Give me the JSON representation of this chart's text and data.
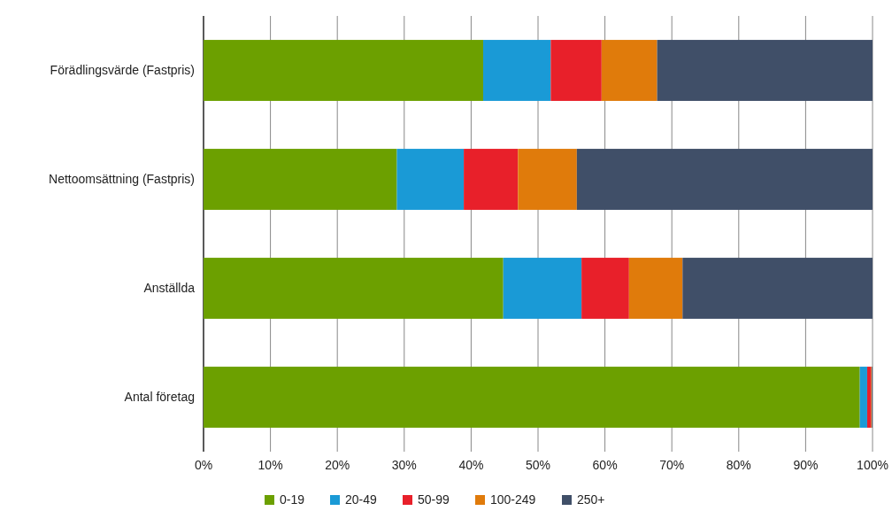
{
  "chart_data": {
    "type": "bar",
    "orientation": "horizontal",
    "stacked": true,
    "categories": [
      "Förädlingsvärde (Fastpris)",
      "Nettoomsättning (Fastpris)",
      "Anställda",
      "Antal företag"
    ],
    "series": [
      {
        "name": "0-19",
        "color": "#6ca000",
        "values": [
          41.8,
          28.9,
          44.8,
          98.1
        ]
      },
      {
        "name": "20-49",
        "color": "#1a9ad6",
        "values": [
          10.1,
          10.0,
          11.7,
          1.1
        ]
      },
      {
        "name": "50-99",
        "color": "#e8202a",
        "values": [
          7.6,
          8.1,
          7.1,
          0.6
        ]
      },
      {
        "name": "100-249",
        "color": "#e07b0b",
        "values": [
          8.3,
          8.8,
          8.0,
          0.1
        ]
      },
      {
        "name": "250+",
        "color": "#404f68",
        "values": [
          32.2,
          44.2,
          28.4,
          0.1
        ]
      }
    ],
    "xlim": [
      0,
      100
    ],
    "xticks": [
      {
        "value": 0,
        "label": "0%"
      },
      {
        "value": 10,
        "label": "10%"
      },
      {
        "value": 20,
        "label": "20%"
      },
      {
        "value": 30,
        "label": "30%"
      },
      {
        "value": 40,
        "label": "40%"
      },
      {
        "value": 50,
        "label": "50%"
      },
      {
        "value": 60,
        "label": "60%"
      },
      {
        "value": 70,
        "label": "70%"
      },
      {
        "value": 80,
        "label": "80%"
      },
      {
        "value": 90,
        "label": "90%"
      },
      {
        "value": 100,
        "label": "100%"
      }
    ],
    "grid": "x",
    "legend": "bottom"
  }
}
